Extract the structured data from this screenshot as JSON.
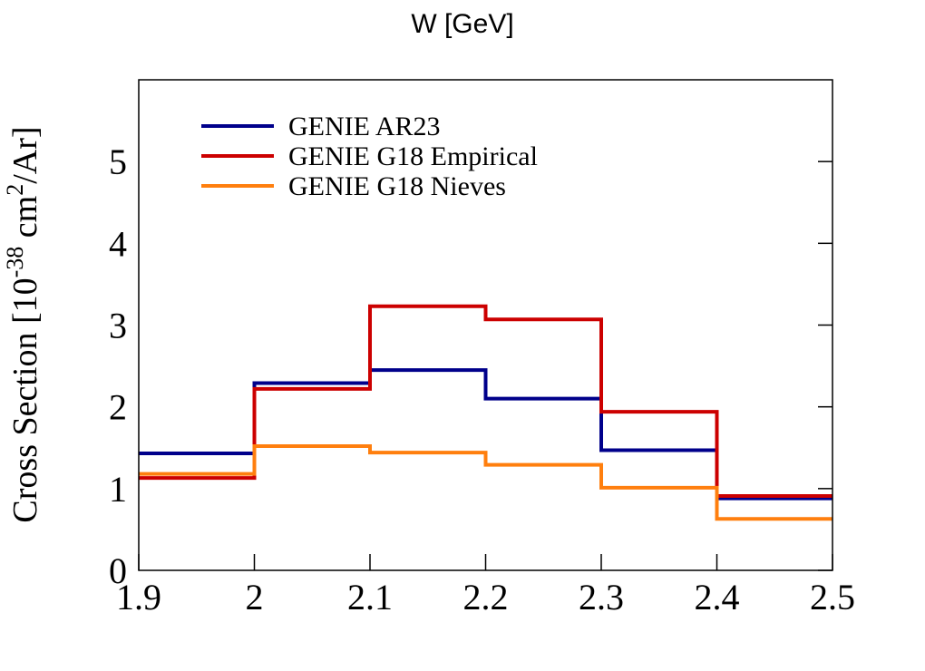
{
  "chart_data": {
    "type": "line",
    "style": "step-histogram",
    "title": "W [GeV]",
    "xlabel": "",
    "ylabel": {
      "prefix": "Cross Section [10",
      "exponent": "-38",
      "middle": " cm",
      "exponent2": "2",
      "suffix": "/Ar]"
    },
    "xlim": [
      1.9,
      2.5
    ],
    "ylim": [
      0,
      6
    ],
    "x_ticks": [
      {
        "value": 1.9,
        "label": "1.9"
      },
      {
        "value": 2.0,
        "label": "2"
      },
      {
        "value": 2.1,
        "label": "2.1"
      },
      {
        "value": 2.2,
        "label": "2.2"
      },
      {
        "value": 2.3,
        "label": "2.3"
      },
      {
        "value": 2.4,
        "label": "2.4"
      },
      {
        "value": 2.5,
        "label": "2.5"
      }
    ],
    "y_ticks": [
      {
        "value": 0,
        "label": "0"
      },
      {
        "value": 1,
        "label": "1"
      },
      {
        "value": 2,
        "label": "2"
      },
      {
        "value": 3,
        "label": "3"
      },
      {
        "value": 4,
        "label": "4"
      },
      {
        "value": 5,
        "label": "5"
      }
    ],
    "bin_edges": [
      1.9,
      2.0,
      2.1,
      2.2,
      2.3,
      2.4,
      2.5
    ],
    "legend_position": "top-left",
    "grid": false,
    "series": [
      {
        "name": "GENIE AR23",
        "color": "#00008b",
        "values": [
          1.43,
          2.29,
          2.45,
          2.1,
          1.47,
          0.88
        ]
      },
      {
        "name": "GENIE G18 Empirical",
        "color": "#cc0000",
        "values": [
          1.13,
          2.22,
          3.23,
          3.07,
          1.94,
          0.91
        ]
      },
      {
        "name": "GENIE G18 Nieves",
        "color": "#ff7f0e",
        "values": [
          1.18,
          1.52,
          1.44,
          1.29,
          1.01,
          0.63
        ]
      }
    ]
  }
}
